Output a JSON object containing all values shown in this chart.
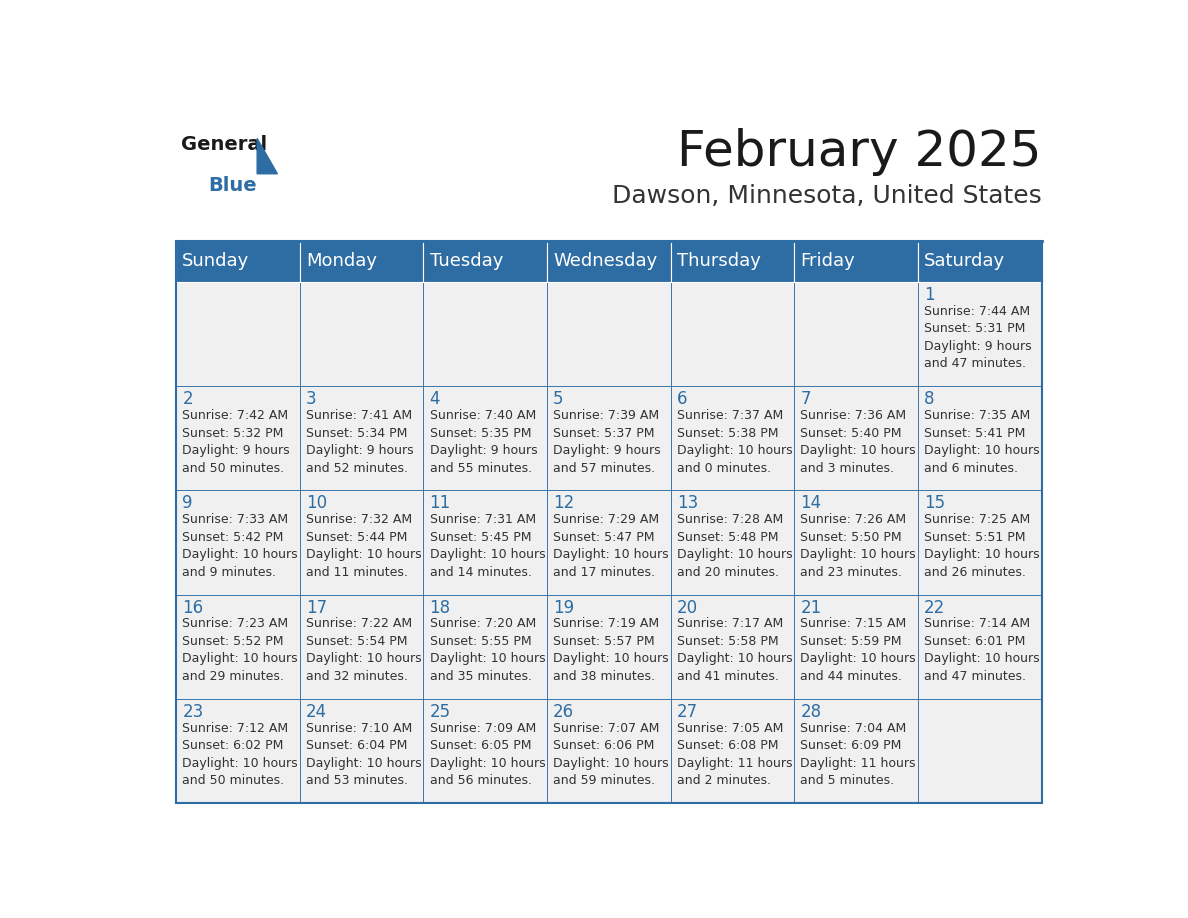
{
  "title": "February 2025",
  "subtitle": "Dawson, Minnesota, United States",
  "header_bg_color": "#2E6DA4",
  "header_text_color": "#FFFFFF",
  "cell_bg_color": "#F0F0F0",
  "cell_text_color": "#333333",
  "day_num_color": "#2E6DA4",
  "border_color": "#2E6DA4",
  "days_of_week": [
    "Sunday",
    "Monday",
    "Tuesday",
    "Wednesday",
    "Thursday",
    "Friday",
    "Saturday"
  ],
  "title_fontsize": 36,
  "subtitle_fontsize": 18,
  "header_fontsize": 13,
  "day_num_fontsize": 12,
  "cell_text_fontsize": 9,
  "weeks": [
    [
      null,
      null,
      null,
      null,
      null,
      null,
      {
        "day": 1,
        "sunrise": "7:44 AM",
        "sunset": "5:31 PM",
        "daylight": "9 hours\nand 47 minutes."
      }
    ],
    [
      {
        "day": 2,
        "sunrise": "7:42 AM",
        "sunset": "5:32 PM",
        "daylight": "9 hours\nand 50 minutes."
      },
      {
        "day": 3,
        "sunrise": "7:41 AM",
        "sunset": "5:34 PM",
        "daylight": "9 hours\nand 52 minutes."
      },
      {
        "day": 4,
        "sunrise": "7:40 AM",
        "sunset": "5:35 PM",
        "daylight": "9 hours\nand 55 minutes."
      },
      {
        "day": 5,
        "sunrise": "7:39 AM",
        "sunset": "5:37 PM",
        "daylight": "9 hours\nand 57 minutes."
      },
      {
        "day": 6,
        "sunrise": "7:37 AM",
        "sunset": "5:38 PM",
        "daylight": "10 hours\nand 0 minutes."
      },
      {
        "day": 7,
        "sunrise": "7:36 AM",
        "sunset": "5:40 PM",
        "daylight": "10 hours\nand 3 minutes."
      },
      {
        "day": 8,
        "sunrise": "7:35 AM",
        "sunset": "5:41 PM",
        "daylight": "10 hours\nand 6 minutes."
      }
    ],
    [
      {
        "day": 9,
        "sunrise": "7:33 AM",
        "sunset": "5:42 PM",
        "daylight": "10 hours\nand 9 minutes."
      },
      {
        "day": 10,
        "sunrise": "7:32 AM",
        "sunset": "5:44 PM",
        "daylight": "10 hours\nand 11 minutes."
      },
      {
        "day": 11,
        "sunrise": "7:31 AM",
        "sunset": "5:45 PM",
        "daylight": "10 hours\nand 14 minutes."
      },
      {
        "day": 12,
        "sunrise": "7:29 AM",
        "sunset": "5:47 PM",
        "daylight": "10 hours\nand 17 minutes."
      },
      {
        "day": 13,
        "sunrise": "7:28 AM",
        "sunset": "5:48 PM",
        "daylight": "10 hours\nand 20 minutes."
      },
      {
        "day": 14,
        "sunrise": "7:26 AM",
        "sunset": "5:50 PM",
        "daylight": "10 hours\nand 23 minutes."
      },
      {
        "day": 15,
        "sunrise": "7:25 AM",
        "sunset": "5:51 PM",
        "daylight": "10 hours\nand 26 minutes."
      }
    ],
    [
      {
        "day": 16,
        "sunrise": "7:23 AM",
        "sunset": "5:52 PM",
        "daylight": "10 hours\nand 29 minutes."
      },
      {
        "day": 17,
        "sunrise": "7:22 AM",
        "sunset": "5:54 PM",
        "daylight": "10 hours\nand 32 minutes."
      },
      {
        "day": 18,
        "sunrise": "7:20 AM",
        "sunset": "5:55 PM",
        "daylight": "10 hours\nand 35 minutes."
      },
      {
        "day": 19,
        "sunrise": "7:19 AM",
        "sunset": "5:57 PM",
        "daylight": "10 hours\nand 38 minutes."
      },
      {
        "day": 20,
        "sunrise": "7:17 AM",
        "sunset": "5:58 PM",
        "daylight": "10 hours\nand 41 minutes."
      },
      {
        "day": 21,
        "sunrise": "7:15 AM",
        "sunset": "5:59 PM",
        "daylight": "10 hours\nand 44 minutes."
      },
      {
        "day": 22,
        "sunrise": "7:14 AM",
        "sunset": "6:01 PM",
        "daylight": "10 hours\nand 47 minutes."
      }
    ],
    [
      {
        "day": 23,
        "sunrise": "7:12 AM",
        "sunset": "6:02 PM",
        "daylight": "10 hours\nand 50 minutes."
      },
      {
        "day": 24,
        "sunrise": "7:10 AM",
        "sunset": "6:04 PM",
        "daylight": "10 hours\nand 53 minutes."
      },
      {
        "day": 25,
        "sunrise": "7:09 AM",
        "sunset": "6:05 PM",
        "daylight": "10 hours\nand 56 minutes."
      },
      {
        "day": 26,
        "sunrise": "7:07 AM",
        "sunset": "6:06 PM",
        "daylight": "10 hours\nand 59 minutes."
      },
      {
        "day": 27,
        "sunrise": "7:05 AM",
        "sunset": "6:08 PM",
        "daylight": "11 hours\nand 2 minutes."
      },
      {
        "day": 28,
        "sunrise": "7:04 AM",
        "sunset": "6:09 PM",
        "daylight": "11 hours\nand 5 minutes."
      },
      null
    ]
  ],
  "logo_general_color": "#1a1a1a",
  "logo_blue_color": "#2E6DA4"
}
